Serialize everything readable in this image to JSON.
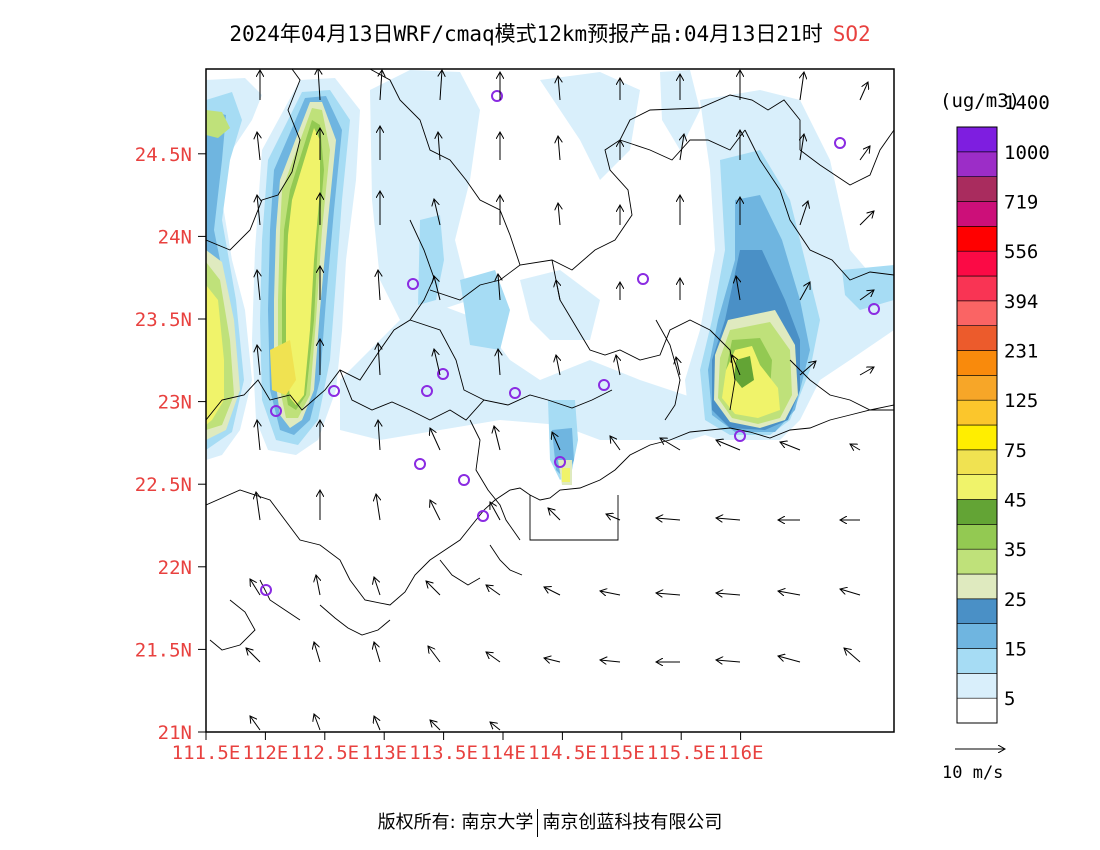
{
  "header": {
    "title": "2024年04月13日WRF/cmaq模式12km预报产品:04月13日21时",
    "pollutant": "SO2"
  },
  "map": {
    "lon_ticks": [
      "111.5E",
      "112E",
      "112.5E",
      "113E",
      "113.5E",
      "114E",
      "114.5E",
      "115E",
      "115.5E",
      "116E"
    ],
    "lat_ticks": [
      "21N",
      "21.5N",
      "22N",
      "22.5N",
      "23N",
      "23.5N",
      "24N",
      "24.5N"
    ]
  },
  "colorbar": {
    "units": "(ug/m3)",
    "labels": [
      "5",
      "15",
      "25",
      "35",
      "45",
      "75",
      "125",
      "231",
      "394",
      "556",
      "719",
      "1000",
      "1400"
    ],
    "colors": [
      "#ffffff",
      "#d9effb",
      "#a6dcf4",
      "#6fb5e0",
      "#4a90c6",
      "#dfeabf",
      "#bfe17a",
      "#93c952",
      "#63a435",
      "#f0f36a",
      "#f0e251",
      "#ffee00",
      "#fbc62c",
      "#f7a628",
      "#f98a0c",
      "#ec5b2c",
      "#fa6464",
      "#f93454",
      "#fb0a45",
      "#ff0000",
      "#cc0f79",
      "#a92c5e",
      "#9c2dc7",
      "#7e1ee0"
    ],
    "wind_reference": "10 m/s"
  },
  "footer": {
    "left": "版权所有: 南京大学",
    "right": "南京创蓝科技有限公司"
  }
}
